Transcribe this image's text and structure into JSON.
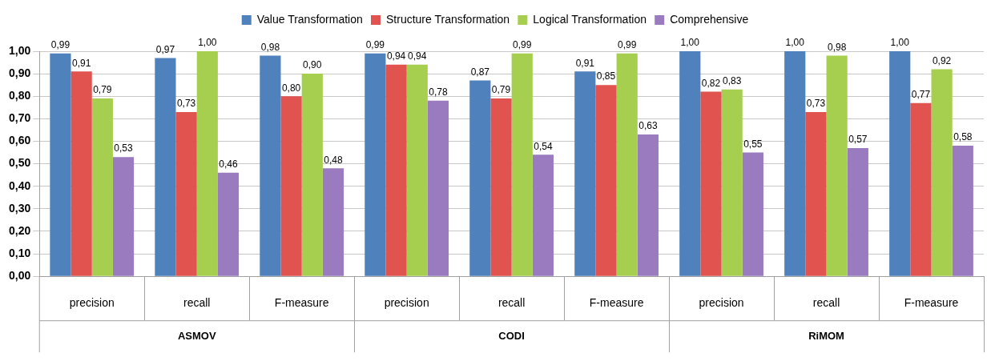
{
  "chart_data": {
    "type": "bar",
    "categories": [
      "precision",
      "recall",
      "F-measure",
      "precision",
      "recall",
      "F-measure",
      "precision",
      "recall",
      "F-measure"
    ],
    "series": [
      {
        "name": "Value Transformation",
        "color": "#4f81bd",
        "values": [
          0.99,
          0.97,
          0.98,
          0.99,
          0.87,
          0.91,
          1.0,
          1.0,
          1.0
        ],
        "value_labels": [
          "0,99",
          "0,97",
          "0,98",
          "0,99",
          "0,87",
          "0,91",
          "1,00",
          "1,00",
          "1,00"
        ]
      },
      {
        "name": "Structure Transformation",
        "color": "#e0534f",
        "values": [
          0.91,
          0.73,
          0.8,
          0.94,
          0.79,
          0.85,
          0.82,
          0.73,
          0.77
        ],
        "value_labels": [
          "0,91",
          "0,73",
          "0,80",
          "0,94",
          "0,79",
          "0,85",
          "0,82",
          "0,73",
          "0,77"
        ]
      },
      {
        "name": "Logical Transformation",
        "color": "#a6cf4f",
        "values": [
          0.79,
          1.0,
          0.9,
          0.94,
          0.99,
          0.99,
          0.83,
          0.98,
          0.92
        ],
        "value_labels": [
          "0,79",
          "1,00",
          "0,90",
          "0,94",
          "0,99",
          "0,99",
          "0,83",
          "0,98",
          "0,92"
        ]
      },
      {
        "name": "Comprehensive",
        "color": "#9a7bbf",
        "values": [
          0.53,
          0.46,
          0.48,
          0.78,
          0.54,
          0.63,
          0.55,
          0.57,
          0.58
        ],
        "value_labels": [
          "0,53",
          "0,46",
          "0,48",
          "0,78",
          "0,54",
          "0,63",
          "0,55",
          "0,57",
          "0,58"
        ]
      }
    ],
    "annotations": [
      "ASMOV",
      "CODI",
      "RiMOM"
    ],
    "ylim": [
      0,
      1
    ],
    "yticks": [
      {
        "value": 0,
        "label": "0,00"
      },
      {
        "value": 0.1,
        "label": "0,10"
      },
      {
        "value": 0.2,
        "label": "0,20"
      },
      {
        "value": 0.3,
        "label": "0,30"
      },
      {
        "value": 0.4,
        "label": "0,40"
      },
      {
        "value": 0.5,
        "label": "0,50"
      },
      {
        "value": 0.6,
        "label": "0,60"
      },
      {
        "value": 0.7,
        "label": "0,70"
      },
      {
        "value": 0.8,
        "label": "0,80"
      },
      {
        "value": 0.9,
        "label": "0,90"
      },
      {
        "value": 1,
        "label": "1,00"
      }
    ],
    "grid": "y",
    "legend": "top"
  }
}
